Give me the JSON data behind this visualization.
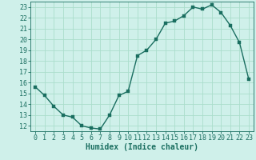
{
  "x": [
    0,
    1,
    2,
    3,
    4,
    5,
    6,
    7,
    8,
    9,
    10,
    11,
    12,
    13,
    14,
    15,
    16,
    17,
    18,
    19,
    20,
    21,
    22,
    23
  ],
  "y": [
    15.6,
    14.8,
    13.8,
    13.0,
    12.8,
    12.0,
    11.8,
    11.7,
    13.0,
    14.8,
    15.2,
    18.5,
    19.0,
    20.0,
    21.5,
    21.7,
    22.2,
    23.0,
    22.8,
    23.2,
    22.5,
    21.3,
    19.7,
    16.3
  ],
  "xlabel": "Humidex (Indice chaleur)",
  "xlim": [
    -0.5,
    23.5
  ],
  "ylim": [
    11.5,
    23.5
  ],
  "yticks": [
    12,
    13,
    14,
    15,
    16,
    17,
    18,
    19,
    20,
    21,
    22,
    23
  ],
  "xticks": [
    0,
    1,
    2,
    3,
    4,
    5,
    6,
    7,
    8,
    9,
    10,
    11,
    12,
    13,
    14,
    15,
    16,
    17,
    18,
    19,
    20,
    21,
    22,
    23
  ],
  "line_color": "#1a6e60",
  "marker_color": "#1a6e60",
  "bg_color": "#cff0ea",
  "grid_color": "#aaddcc",
  "axis_color": "#1a6e60",
  "tick_label_color": "#1a6e60",
  "xlabel_color": "#1a6e60",
  "xlabel_fontsize": 7,
  "tick_fontsize": 6,
  "line_width": 1.0,
  "marker_size": 2.5
}
